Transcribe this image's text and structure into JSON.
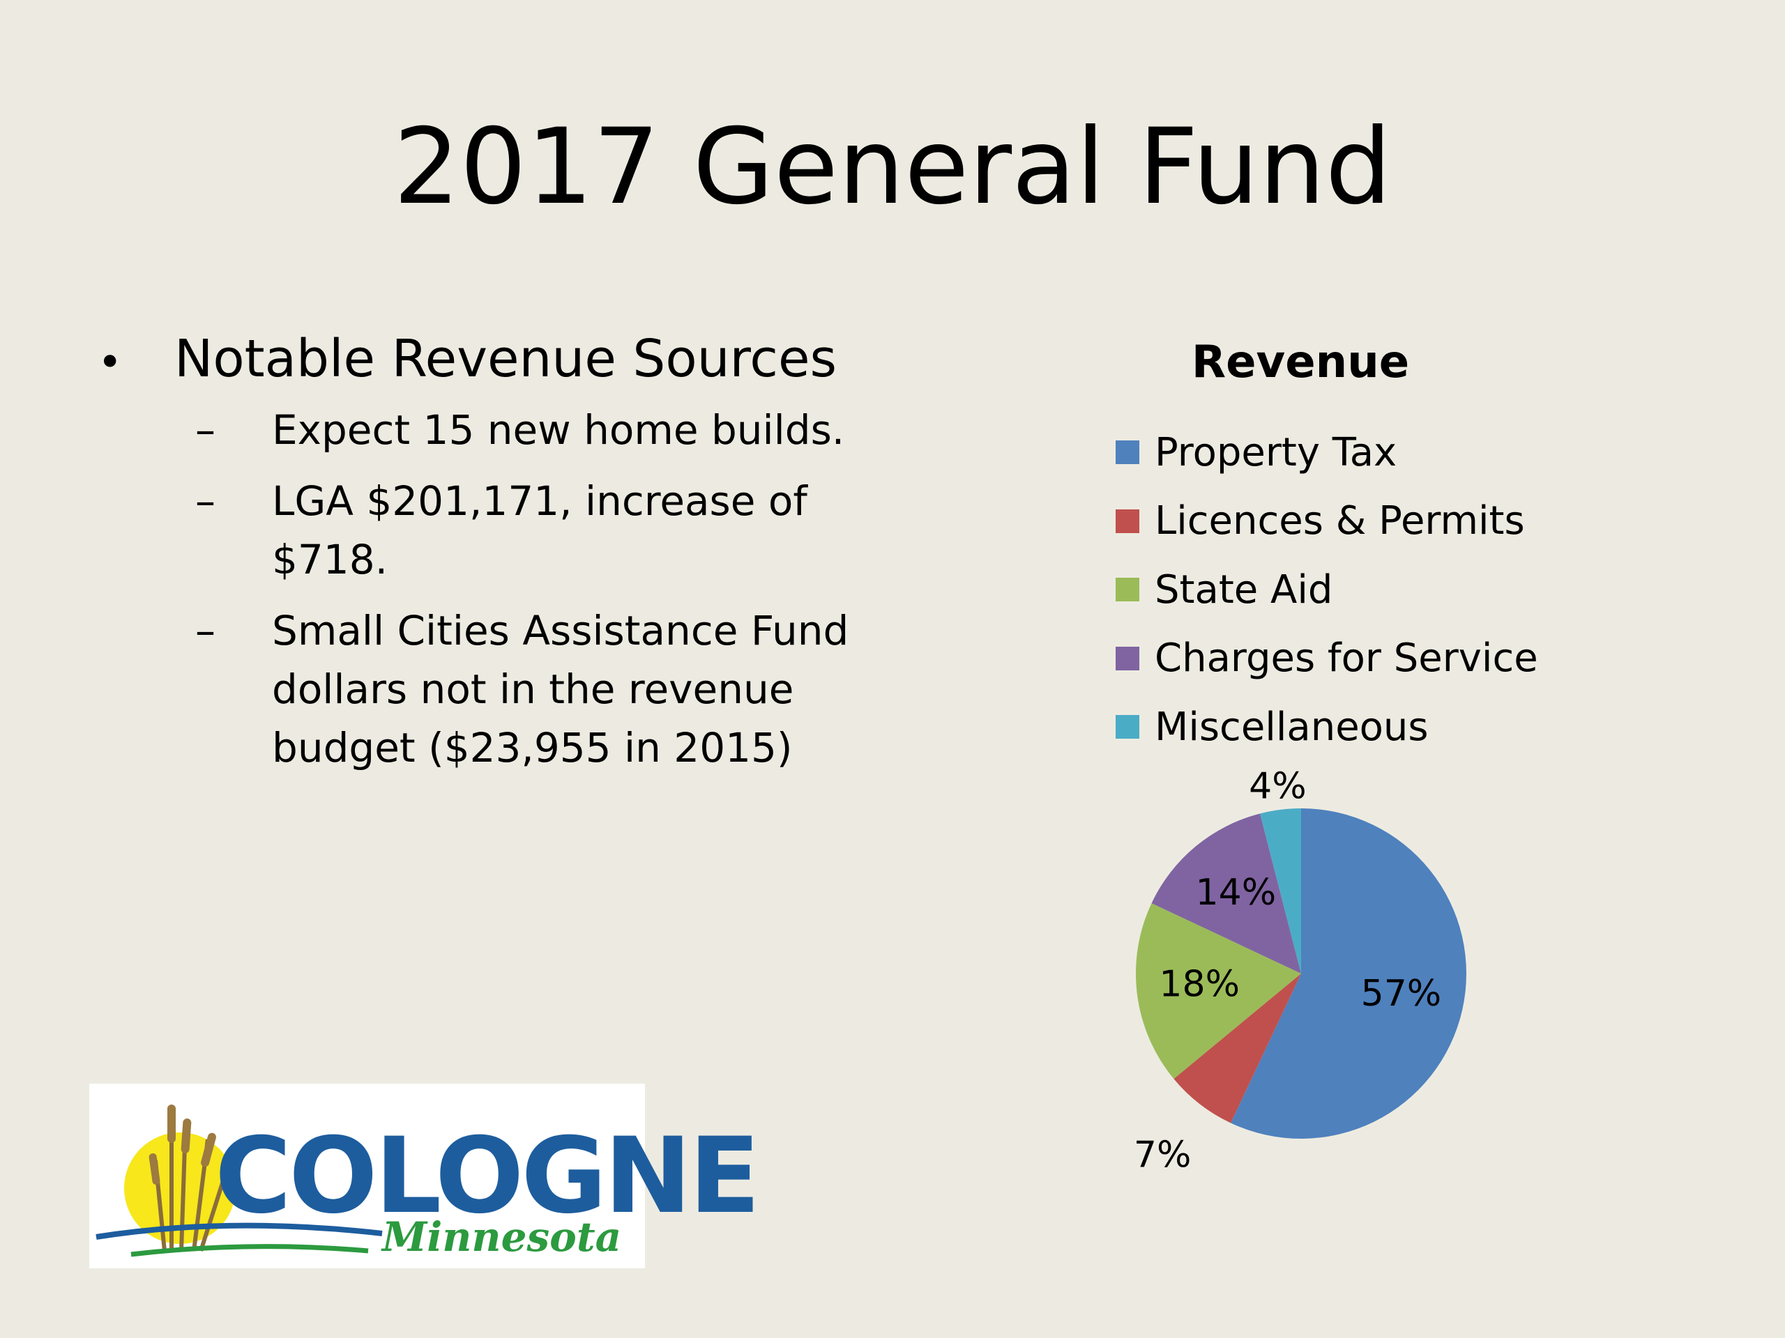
{
  "title": "2017 General Fund",
  "bullets": {
    "main": "Notable Revenue Sources",
    "dash": "–",
    "items": [
      "Expect 15 new home builds.",
      "LGA $201,171, increase of $718.",
      "Small Cities Assistance Fund dollars not in the revenue budget ($23,955 in 2015)"
    ]
  },
  "logo": {
    "name": "COLOGNE",
    "sub": "Minnesota"
  },
  "chart_data": {
    "type": "pie",
    "title": "Revenue",
    "legend_position": "top",
    "slices": [
      {
        "label": "Property Tax",
        "value": 57,
        "display": "57%",
        "color": "#4f81bd"
      },
      {
        "label": "Licences & Permits",
        "value": 7,
        "display": "7%",
        "color": "#c0504d"
      },
      {
        "label": "State Aid",
        "value": 18,
        "display": "18%",
        "color": "#9bbb59"
      },
      {
        "label": "Charges for Service",
        "value": 14,
        "display": "14%",
        "color": "#8064a2"
      },
      {
        "label": "Miscellaneous",
        "value": 4,
        "display": "4%",
        "color": "#4bacc6"
      }
    ]
  }
}
